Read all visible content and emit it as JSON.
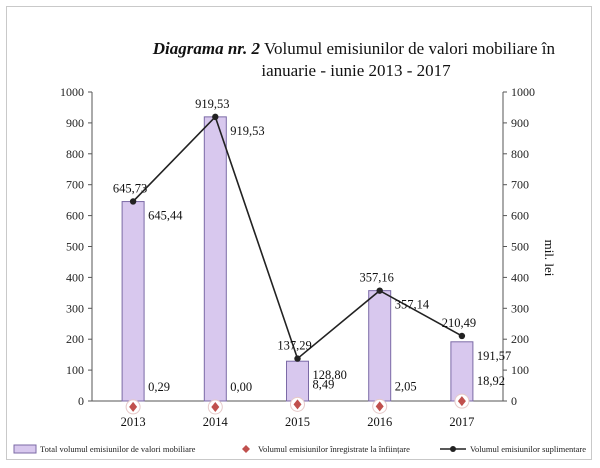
{
  "chart_data": {
    "type": "bar",
    "title_prefix": "Diagrama nr. 2",
    "title_line1": "Volumul emisiunilor de valori mobiliare în",
    "title_line2": "ianuarie - iunie 2013 - 2017",
    "categories": [
      "2013",
      "2014",
      "2015",
      "2016",
      "2017"
    ],
    "ylim": [
      0,
      1000
    ],
    "yticks": [
      0,
      100,
      200,
      300,
      400,
      500,
      600,
      700,
      800,
      900,
      1000
    ],
    "y2label": "mil. lei",
    "series": [
      {
        "name": "Total volumul emisiunilor de valori mobiliare",
        "kind": "bar",
        "values": [
          645.44,
          919.53,
          128.8,
          357.14,
          191.57
        ],
        "labels": [
          "645,44",
          "919,53",
          "128,80",
          "357,14",
          "191,57"
        ],
        "color": "#d8c8ee"
      },
      {
        "name": "Volumul emisiunilor înregistrate la înființare",
        "kind": "marker",
        "values": [
          0.29,
          0.0,
          8.49,
          2.05,
          18.92
        ],
        "labels": [
          "0,29",
          "0,00",
          "8,49",
          "2,05",
          "18,92"
        ],
        "color": "#c0504d"
      },
      {
        "name": "Volumul emisiunilor suplimentare",
        "kind": "line",
        "values": [
          645.73,
          919.53,
          137.29,
          357.16,
          210.49
        ],
        "labels": [
          "645,73",
          "919,53",
          "137,29",
          "357,16",
          "210,49"
        ],
        "color": "#222222"
      }
    ],
    "legend_position": "bottom"
  }
}
